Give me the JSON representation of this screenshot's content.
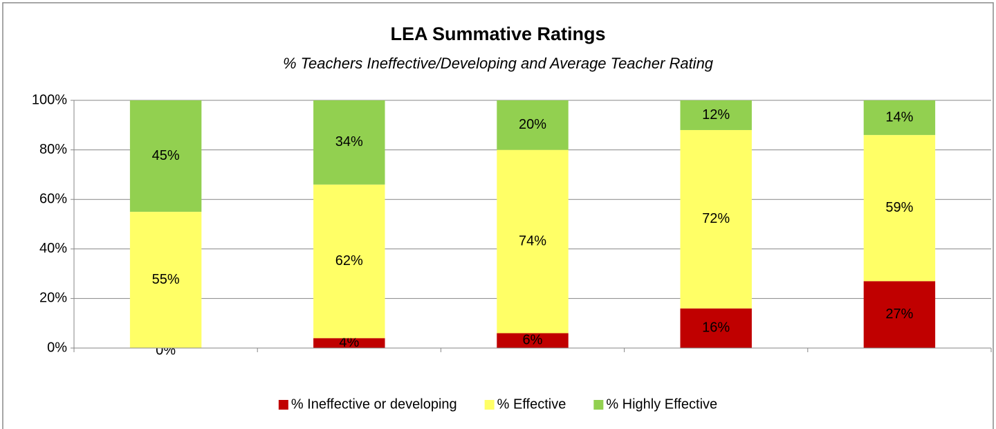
{
  "chart_data": {
    "type": "stacked_bar",
    "title": "LEA Summative Ratings",
    "subtitle": "% Teachers Ineffective/Developing and Average Teacher Rating",
    "categories": [
      null,
      null,
      null,
      null,
      null
    ],
    "series": [
      {
        "name": "% Ineffective or developing",
        "color": "#c00000",
        "values": [
          0,
          4,
          6,
          16,
          27
        ],
        "value_labels": [
          "0%",
          "4%",
          "6%",
          "16%",
          "27%"
        ]
      },
      {
        "name": "% Effective",
        "color": "#ffff66",
        "values": [
          55,
          62,
          74,
          72,
          59
        ],
        "value_labels": [
          "55%",
          "62%",
          "74%",
          "72%",
          "59%"
        ]
      },
      {
        "name": "% Highly Effective",
        "color": "#92d050",
        "values": [
          45,
          34,
          20,
          12,
          14
        ],
        "value_labels": [
          "45%",
          "34%",
          "20%",
          "12%",
          "14%"
        ]
      }
    ],
    "ylim": [
      0,
      100
    ],
    "yticks": [
      {
        "value": 0,
        "label": "0%"
      },
      {
        "value": 20,
        "label": "20%"
      },
      {
        "value": 40,
        "label": "40%"
      },
      {
        "value": 60,
        "label": "60%"
      },
      {
        "value": 80,
        "label": "80%"
      },
      {
        "value": 100,
        "label": "100%"
      }
    ],
    "grid": true,
    "legend": "bottom"
  }
}
